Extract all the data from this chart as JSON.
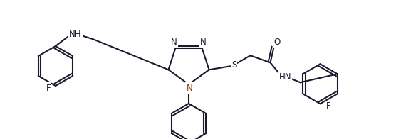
{
  "figsize": [
    5.56,
    1.96
  ],
  "dpi": 100,
  "bg": "#ffffff",
  "bond_color": "#1a1a2e",
  "bond_lw": 1.5,
  "font_color": "#1a1a2e",
  "font_size": 8.5,
  "xlim": [
    0,
    556
  ],
  "ylim": [
    0,
    196
  ]
}
